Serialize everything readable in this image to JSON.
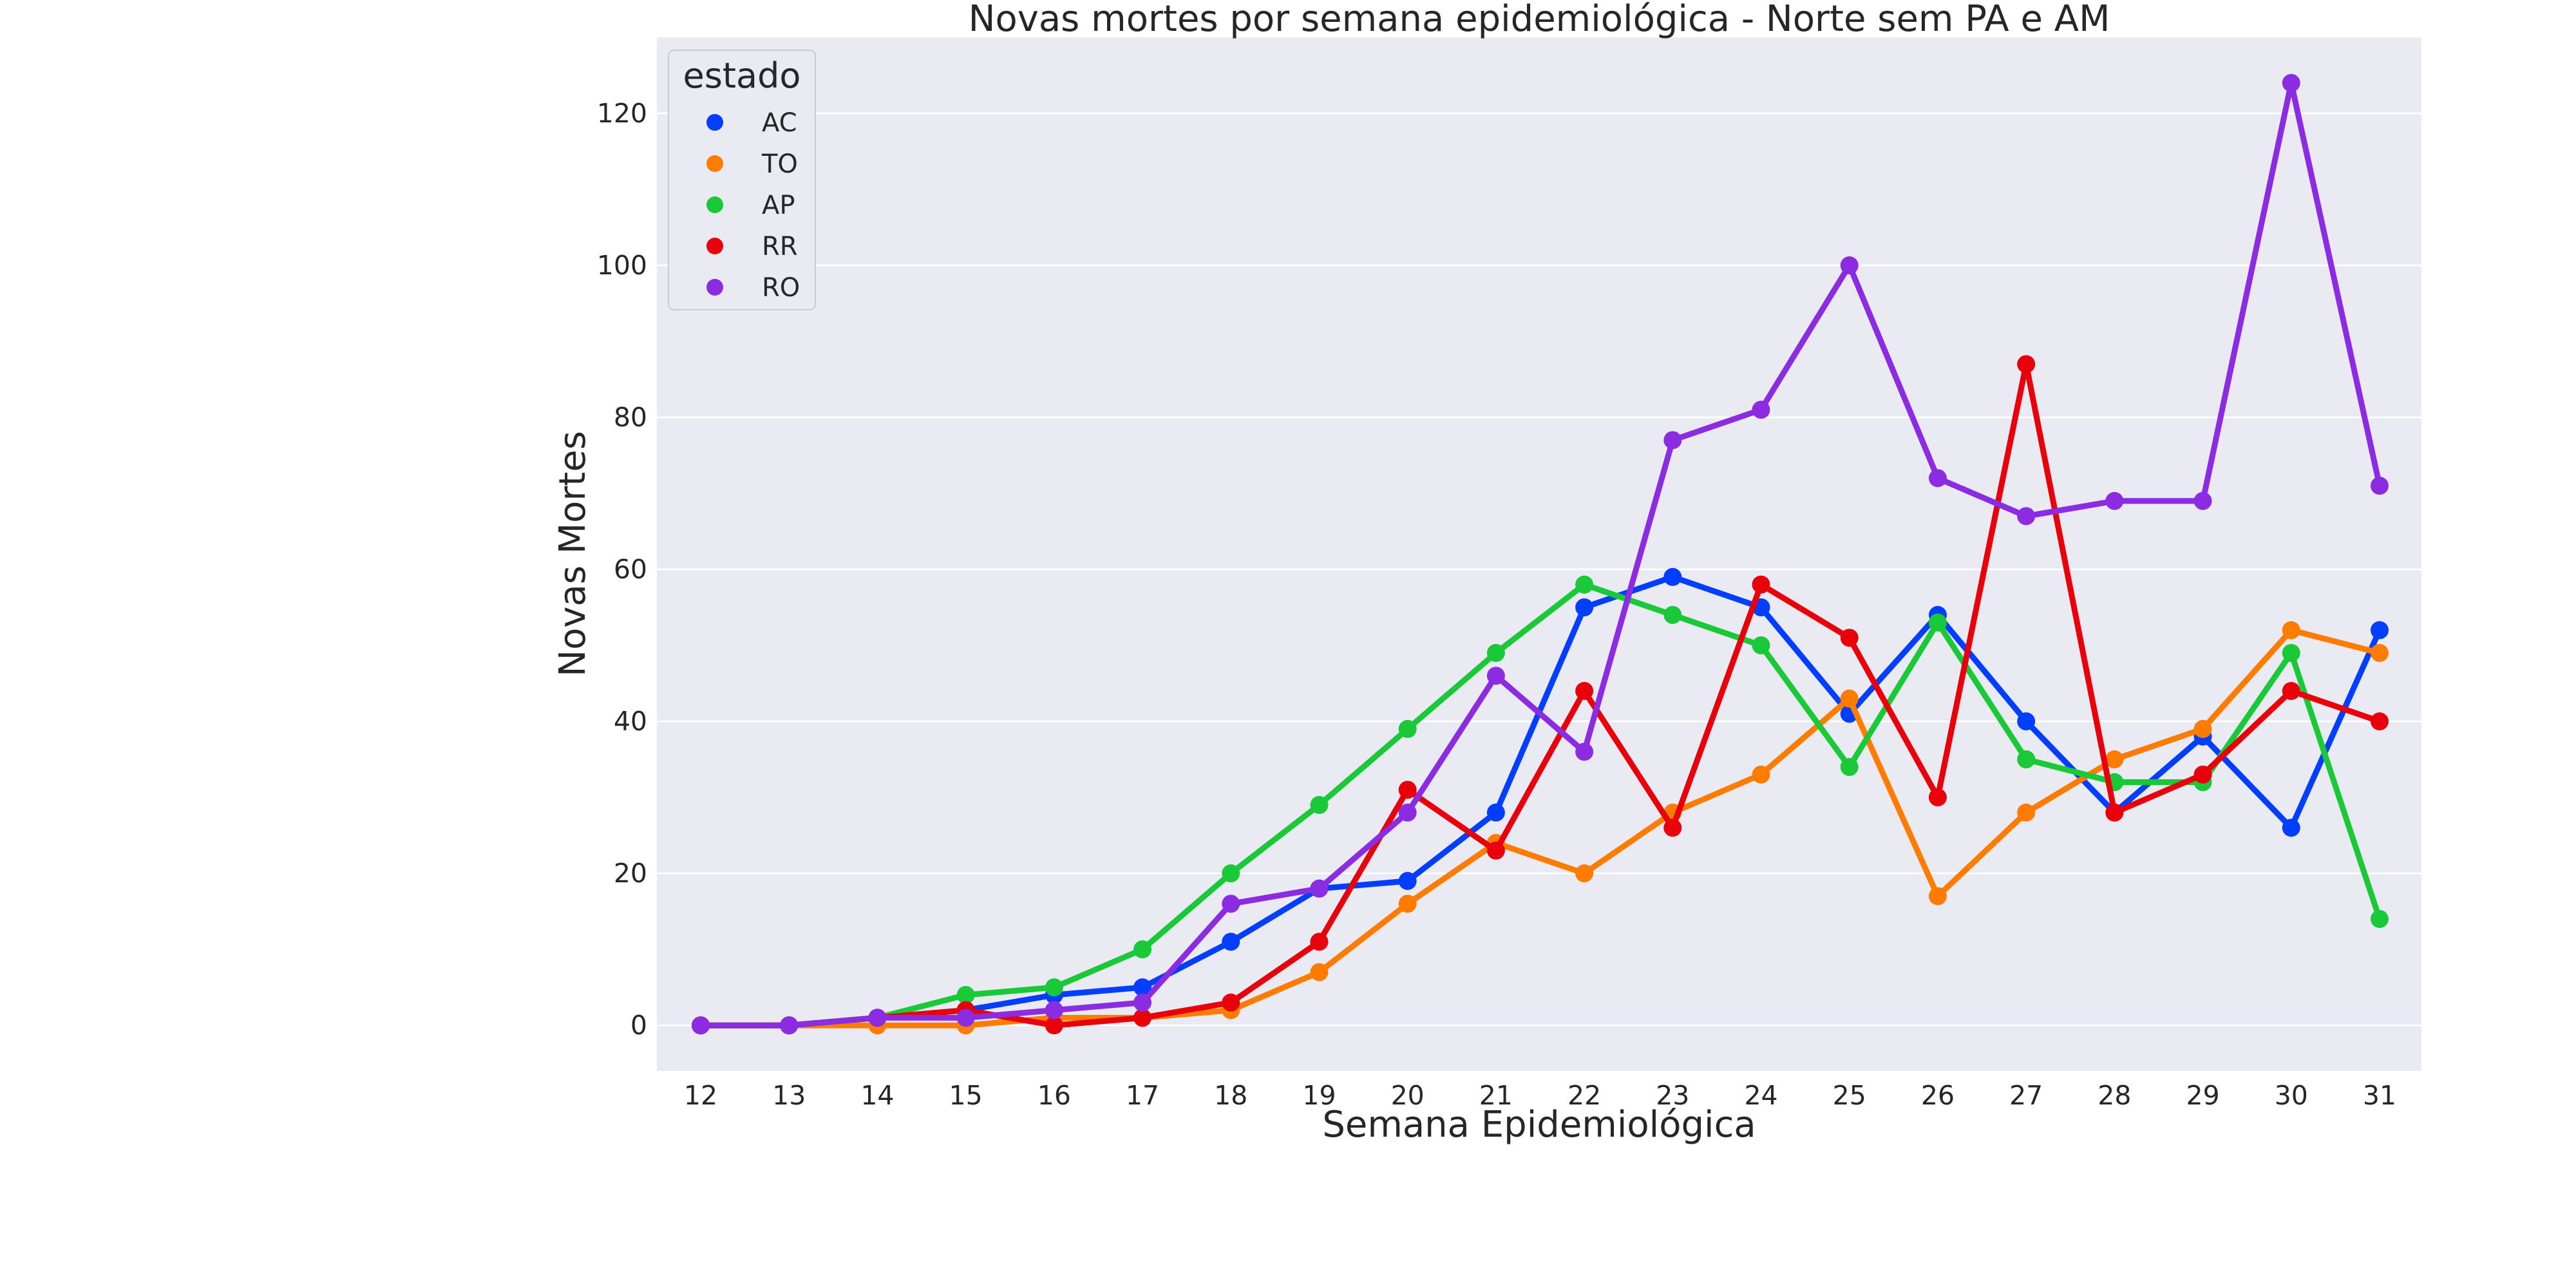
{
  "chart_data": {
    "type": "line",
    "title": "Novas mortes por semana epidemiológica - Norte sem PA e AM",
    "xlabel": "Semana Epidemiológica",
    "ylabel": "Novas Mortes",
    "categories": [
      "12",
      "13",
      "14",
      "15",
      "16",
      "17",
      "18",
      "19",
      "20",
      "21",
      "22",
      "23",
      "24",
      "25",
      "26",
      "27",
      "28",
      "29",
      "30",
      "31"
    ],
    "yticks": [
      0,
      20,
      40,
      60,
      80,
      100,
      120
    ],
    "ylim": [
      -6,
      130
    ],
    "grid": true,
    "background": "#eaeaf2",
    "legend": {
      "title": "estado",
      "placement": "top-left"
    },
    "series": [
      {
        "name": "AC",
        "color": "#023eff",
        "values": [
          0,
          0,
          1,
          2,
          4,
          5,
          11,
          18,
          19,
          28,
          55,
          59,
          55,
          41,
          54,
          40,
          28,
          38,
          26,
          52
        ]
      },
      {
        "name": "TO",
        "color": "#ff7c00",
        "values": [
          0,
          0,
          0,
          0,
          1,
          1,
          2,
          7,
          16,
          24,
          20,
          28,
          33,
          43,
          17,
          28,
          35,
          39,
          52,
          49
        ]
      },
      {
        "name": "AP",
        "color": "#1ac938",
        "values": [
          0,
          0,
          1,
          4,
          5,
          10,
          20,
          29,
          39,
          49,
          58,
          54,
          50,
          34,
          53,
          35,
          32,
          32,
          49,
          14
        ]
      },
      {
        "name": "RR",
        "color": "#e8000b",
        "values": [
          0,
          0,
          1,
          2,
          0,
          1,
          3,
          11,
          31,
          23,
          44,
          26,
          58,
          51,
          30,
          87,
          28,
          33,
          44,
          40
        ]
      },
      {
        "name": "RO",
        "color": "#8b2be2",
        "values": [
          0,
          0,
          1,
          1,
          2,
          3,
          16,
          18,
          28,
          46,
          36,
          77,
          81,
          100,
          72,
          67,
          69,
          69,
          124,
          71
        ]
      }
    ]
  }
}
